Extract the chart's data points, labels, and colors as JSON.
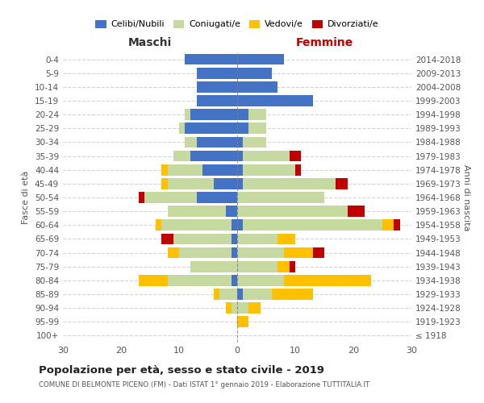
{
  "age_groups": [
    "100+",
    "95-99",
    "90-94",
    "85-89",
    "80-84",
    "75-79",
    "70-74",
    "65-69",
    "60-64",
    "55-59",
    "50-54",
    "45-49",
    "40-44",
    "35-39",
    "30-34",
    "25-29",
    "20-24",
    "15-19",
    "10-14",
    "5-9",
    "0-4"
  ],
  "birth_years": [
    "≤ 1918",
    "1919-1923",
    "1924-1928",
    "1929-1933",
    "1934-1938",
    "1939-1943",
    "1944-1948",
    "1949-1953",
    "1954-1958",
    "1959-1963",
    "1964-1968",
    "1969-1973",
    "1974-1978",
    "1979-1983",
    "1984-1988",
    "1989-1993",
    "1994-1998",
    "1999-2003",
    "2004-2008",
    "2009-2013",
    "2014-2018"
  ],
  "males": {
    "celibi": [
      0,
      0,
      0,
      0,
      1,
      0,
      1,
      1,
      1,
      2,
      7,
      4,
      6,
      8,
      7,
      9,
      8,
      7,
      7,
      7,
      9
    ],
    "coniugati": [
      0,
      0,
      1,
      3,
      11,
      8,
      9,
      10,
      12,
      10,
      9,
      8,
      6,
      3,
      2,
      1,
      1,
      0,
      0,
      0,
      0
    ],
    "vedovi": [
      0,
      0,
      1,
      1,
      5,
      0,
      2,
      0,
      1,
      0,
      0,
      1,
      1,
      0,
      0,
      0,
      0,
      0,
      0,
      0,
      0
    ],
    "divorziati": [
      0,
      0,
      0,
      0,
      0,
      0,
      0,
      2,
      0,
      0,
      1,
      0,
      0,
      0,
      0,
      0,
      0,
      0,
      0,
      0,
      0
    ]
  },
  "females": {
    "nubili": [
      0,
      0,
      0,
      1,
      0,
      0,
      0,
      0,
      1,
      0,
      0,
      1,
      1,
      1,
      1,
      2,
      2,
      13,
      7,
      6,
      8
    ],
    "coniugate": [
      0,
      0,
      2,
      5,
      8,
      7,
      8,
      7,
      24,
      19,
      15,
      16,
      9,
      8,
      4,
      3,
      3,
      0,
      0,
      0,
      0
    ],
    "vedove": [
      0,
      2,
      2,
      7,
      15,
      2,
      5,
      3,
      2,
      0,
      0,
      0,
      0,
      0,
      0,
      0,
      0,
      0,
      0,
      0,
      0
    ],
    "divorziate": [
      0,
      0,
      0,
      0,
      0,
      1,
      2,
      0,
      1,
      3,
      0,
      2,
      1,
      2,
      0,
      0,
      0,
      0,
      0,
      0,
      0
    ]
  },
  "colors": {
    "celibi": "#4472c4",
    "coniugati": "#c5d9a0",
    "vedovi": "#ffc000",
    "divorziati": "#c00000"
  },
  "xlim": 30,
  "title": "Popolazione per età, sesso e stato civile - 2019",
  "subtitle": "COMUNE DI BELMONTE PICENO (FM) - Dati ISTAT 1° gennaio 2019 - Elaborazione TUTTITALIA.IT",
  "ylabel_left": "Fasce di età",
  "ylabel_right": "Anni di nascita",
  "legend_labels": [
    "Celibi/Nubili",
    "Coniugati/e",
    "Vedovi/e",
    "Divorziati/e"
  ],
  "maschi_label": "Maschi",
  "femmine_label": "Femmine",
  "maschi_color": "#333333",
  "femmine_color": "#c00000"
}
